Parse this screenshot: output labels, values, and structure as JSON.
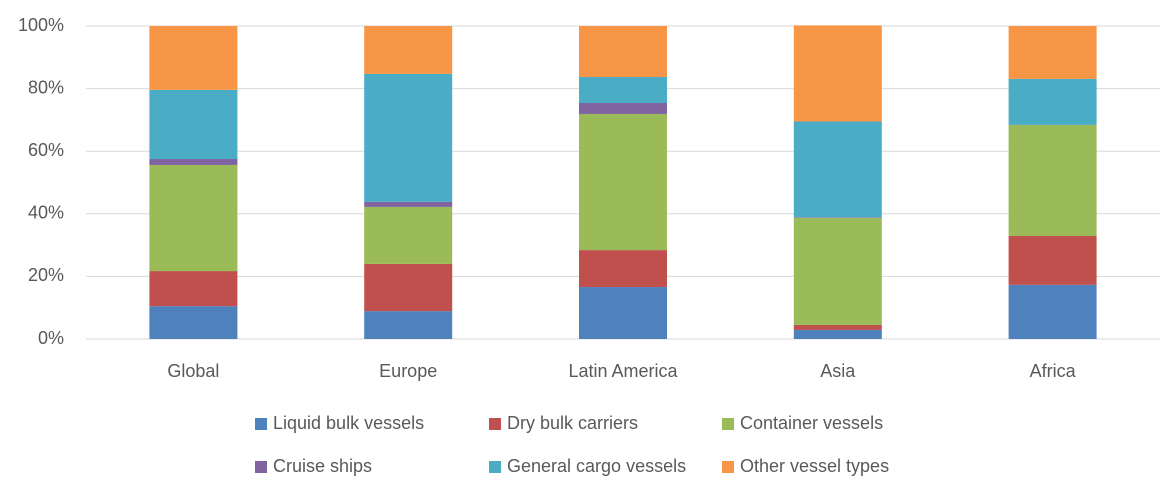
{
  "chart_data": {
    "type": "stacked_bar",
    "categories": [
      "Global",
      "Europe",
      "Latin America",
      "Asia",
      "Africa"
    ],
    "series": [
      {
        "name": "Liquid bulk vessels",
        "color": "#4f81bd",
        "values": [
          10.5,
          8.9,
          16.6,
          2.9,
          17.3
        ]
      },
      {
        "name": "Dry bulk carriers",
        "color": "#c0504d",
        "values": [
          11.2,
          15.1,
          11.8,
          1.6,
          15.6
        ]
      },
      {
        "name": "Container vessels",
        "color": "#9bbb59",
        "values": [
          33.9,
          18.2,
          43.5,
          34.2,
          35.5
        ]
      },
      {
        "name": "Cruise ships",
        "color": "#8064a2",
        "values": [
          1.9,
          1.6,
          3.5,
          0.2,
          0
        ]
      },
      {
        "name": "General cargo vessels",
        "color": "#4bacc6",
        "values": [
          22.1,
          40.9,
          8.3,
          30.6,
          14.7
        ]
      },
      {
        "name": "Other vessel types",
        "color": "#f79646",
        "values": [
          20.4,
          15.3,
          16.3,
          30.7,
          16.9
        ]
      }
    ],
    "ylim": [
      0,
      100
    ],
    "yticks": [
      {
        "value": 0,
        "label": "0%"
      },
      {
        "value": 20,
        "label": "20%"
      },
      {
        "value": 40,
        "label": "40%"
      },
      {
        "value": 60,
        "label": "60%"
      },
      {
        "value": 80,
        "label": "80%"
      },
      {
        "value": 100,
        "label": "100%"
      }
    ],
    "grid": true,
    "legend": "bottom"
  }
}
